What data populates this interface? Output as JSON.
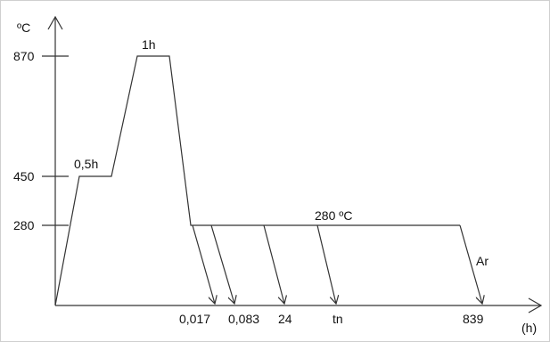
{
  "diagram": {
    "y_unit": "ºC",
    "x_unit": "(h)",
    "y_ticks": [
      "870",
      "450",
      "280"
    ],
    "x_ticks": [
      "0,017",
      "0,083",
      "24",
      "tn",
      "839"
    ],
    "annotations": {
      "hold_450": "0,5h",
      "hold_870": "1h",
      "hold_280": "280 ºC",
      "quench_medium": "Ar"
    }
  }
}
